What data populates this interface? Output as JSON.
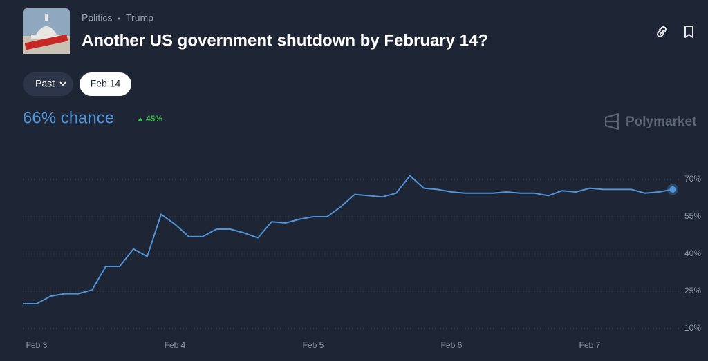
{
  "header": {
    "breadcrumb": [
      "Politics",
      "Trump"
    ],
    "title": "Another US government shutdown by February 14?",
    "filters": [
      "Past",
      "Feb 14"
    ],
    "chance": "66% chance",
    "change": "45%",
    "brand": "Polymarket"
  },
  "chart_data": {
    "type": "line",
    "color": "#4f93d8",
    "categories": [
      null,
      "Feb 3",
      null,
      null,
      null,
      null,
      null,
      null,
      null,
      null,
      null,
      "Feb 4",
      null,
      null,
      null,
      null,
      null,
      null,
      null,
      null,
      null,
      "Feb 5",
      null,
      null,
      null,
      null,
      null,
      null,
      null,
      null,
      null,
      "Feb 6",
      null,
      null,
      null,
      null,
      null,
      null,
      null,
      null,
      null,
      "Feb 7",
      null,
      null,
      null,
      null,
      null,
      null
    ],
    "values": [
      20,
      20,
      23,
      24,
      24,
      25.5,
      35,
      35,
      42,
      39,
      56,
      52,
      47,
      47,
      50,
      50,
      48.5,
      46.5,
      53,
      52.5,
      54,
      55,
      55,
      59,
      64,
      63.5,
      63,
      64.5,
      71.5,
      66.5,
      66,
      65,
      64.5,
      64.5,
      64.5,
      65,
      64.5,
      64.5,
      63.5,
      65.5,
      65,
      66.5,
      66,
      66,
      66,
      64.5,
      65,
      66
    ],
    "ylim": [
      5,
      75
    ],
    "yticks": [
      {
        "value": 10,
        "label": "10%"
      },
      {
        "value": 25,
        "label": "25%"
      },
      {
        "value": 40,
        "label": "40%"
      },
      {
        "value": 55,
        "label": "55%"
      },
      {
        "value": 70,
        "label": "70%"
      }
    ],
    "grid": true
  }
}
